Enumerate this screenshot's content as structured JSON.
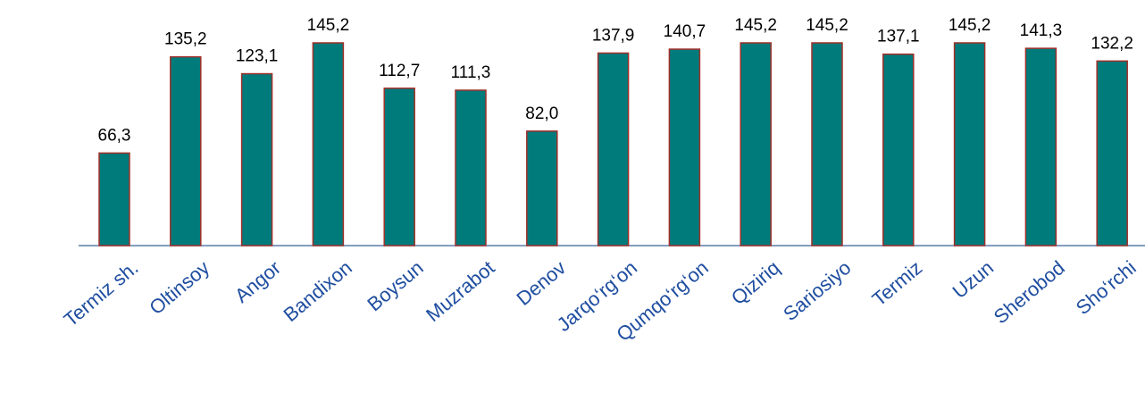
{
  "chart_data": {
    "type": "bar",
    "categories": [
      "Termiz sh.",
      "Oltinsoy",
      "Angor",
      "Bandixon",
      "Boysun",
      "Muzrabot",
      "Denov",
      "Jarqo‘rg‘on",
      "Qumqo‘rg‘on",
      "Qiziriq",
      "Sariosiyo",
      "Termiz",
      "Uzun",
      "Sherobod",
      "Sho‘rchi"
    ],
    "values": [
      66.3,
      135.2,
      123.1,
      145.2,
      112.7,
      111.3,
      82.0,
      137.9,
      140.7,
      145.2,
      145.2,
      137.1,
      145.2,
      141.3,
      132.2
    ],
    "value_labels": [
      "66,3",
      "135,2",
      "123,1",
      "145,2",
      "112,7",
      "111,3",
      "82,0",
      "137,9",
      "140,7",
      "145,2",
      "145,2",
      "137,1",
      "145,2",
      "141,3",
      "132,2"
    ],
    "color": "#007b7b",
    "edge_color": "#a0302a",
    "ylim": [
      0,
      150
    ]
  }
}
